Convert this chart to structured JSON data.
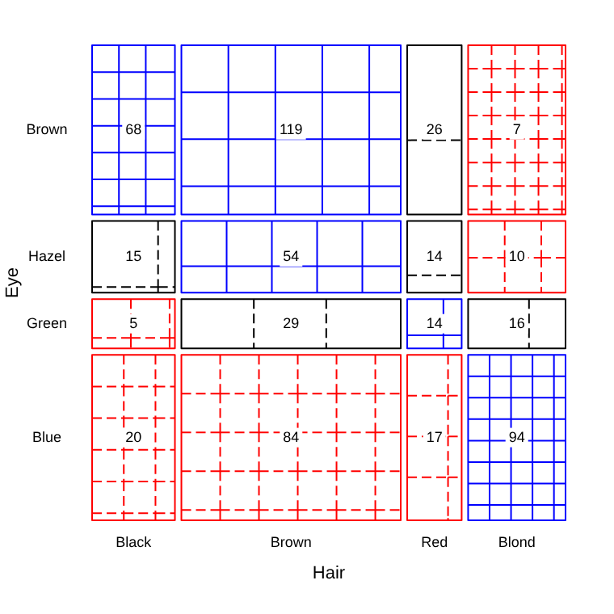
{
  "chart_data": {
    "type": "heatmap",
    "xlabel": "Hair",
    "ylabel": "Eye",
    "categories": [
      "Black",
      "Brown",
      "Red",
      "Blond"
    ],
    "y_categories": [
      "Brown",
      "Hazel",
      "Green",
      "Blue"
    ],
    "cells": [
      [
        68,
        119,
        26,
        7
      ],
      [
        15,
        54,
        14,
        10
      ],
      [
        5,
        29,
        14,
        16
      ],
      [
        20,
        84,
        17,
        94
      ]
    ],
    "data_labels": true
  }
}
